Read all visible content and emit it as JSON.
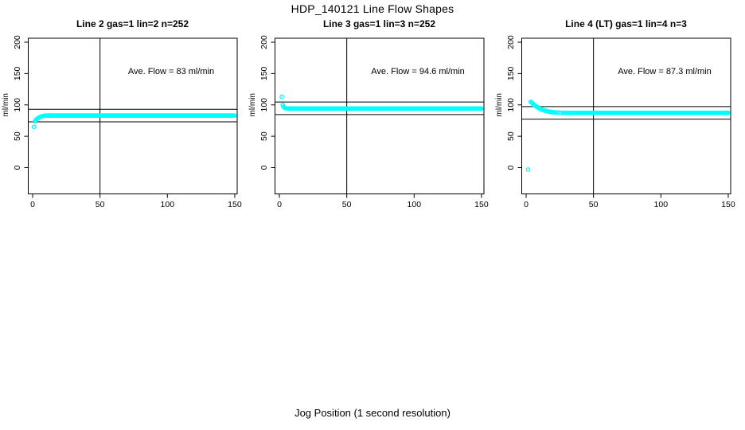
{
  "title": "HDP_140121  Line Flow Shapes",
  "xlabel": "Jog Position (1 second resolution)",
  "chart_data": {
    "type": "scatter",
    "title": "HDP_140121  Line Flow Shapes",
    "xlabel": "Jog Position (1 second resolution)",
    "ylabel": "ml/min",
    "x_ticks": [
      0,
      50,
      100,
      150
    ],
    "y_ticks": [
      0,
      50,
      100,
      150,
      200
    ],
    "xlim": [
      0,
      155
    ],
    "ylim": [
      -10,
      210
    ],
    "grid": false,
    "legend": "none",
    "point_color": "#00FFFF",
    "line_color": "#000000",
    "vline_x": 50,
    "panels": [
      {
        "title": "Line 2 gas=1 lin=2 n=252",
        "annotation": "Ave. Flow =  83  ml/min",
        "ave_flow_ml_min": 83,
        "n": 252,
        "ref_lines": [
          93,
          73
        ],
        "points": [
          [
            1,
            65
          ],
          [
            1.6,
            73.5
          ],
          [
            2.2,
            75.5
          ],
          [
            2.8,
            77
          ],
          [
            3.4,
            78
          ],
          [
            4,
            79
          ],
          [
            4.6,
            79.8
          ],
          [
            5.2,
            80.4
          ],
          [
            5.8,
            81
          ],
          [
            6.4,
            81.4
          ],
          [
            7,
            81.8
          ],
          [
            7.6,
            82.1
          ],
          [
            8.2,
            82.4
          ],
          [
            8.8,
            82.7
          ],
          [
            9.4,
            82.9
          ]
        ],
        "tail": {
          "x_start": 10,
          "x_end": 150,
          "step": 0.6,
          "y": 83
        }
      },
      {
        "title": "Line 3 gas=1 lin=3 n=252",
        "annotation": "Ave. Flow =  94.6  ml/min",
        "ave_flow_ml_min": 94.6,
        "n": 252,
        "ref_lines": [
          104.6,
          84.6
        ],
        "points": [
          [
            1.8,
            113
          ],
          [
            2.4,
            100
          ],
          [
            3,
            97.2
          ],
          [
            3.6,
            95.9
          ],
          [
            4.2,
            95.1
          ],
          [
            4.8,
            94.7
          ],
          [
            5.4,
            94.4
          ]
        ],
        "tail": {
          "x_start": 6,
          "x_end": 150,
          "step": 0.6,
          "y": 94.2
        }
      },
      {
        "title": "Line 4 (LT) gas=1 lin=4 n=3",
        "annotation": "Ave. Flow =  87.3  ml/min",
        "ave_flow_ml_min": 87.3,
        "n": 3,
        "ref_lines": [
          97.3,
          77.3
        ],
        "points": [
          [
            1.5,
            -3
          ],
          [
            3.5,
            105
          ],
          [
            4.1,
            103.6
          ],
          [
            4.7,
            102.4
          ],
          [
            5.3,
            101.2
          ],
          [
            5.9,
            100.1
          ],
          [
            6.5,
            99.1
          ],
          [
            7.1,
            98.1
          ],
          [
            7.7,
            97.2
          ],
          [
            8.3,
            96.4
          ],
          [
            8.9,
            95.6
          ],
          [
            9.5,
            94.9
          ],
          [
            10.1,
            94.2
          ],
          [
            10.7,
            93.6
          ],
          [
            11.3,
            93
          ],
          [
            11.9,
            92.5
          ],
          [
            12.5,
            92
          ],
          [
            13.1,
            91.5
          ],
          [
            13.7,
            91.1
          ],
          [
            14.3,
            90.7
          ],
          [
            14.9,
            90.4
          ],
          [
            15.5,
            90
          ],
          [
            16.1,
            89.7
          ],
          [
            16.7,
            89.5
          ],
          [
            17.3,
            89.2
          ],
          [
            17.9,
            89
          ],
          [
            18.5,
            88.7
          ],
          [
            19.1,
            88.5
          ],
          [
            19.7,
            88.4
          ],
          [
            20.3,
            88.2
          ],
          [
            20.9,
            88
          ],
          [
            21.5,
            87.9
          ],
          [
            22.7,
            87.8
          ],
          [
            23.9,
            87.7
          ],
          [
            25.1,
            87.6
          ],
          [
            26.3,
            87.5
          ],
          [
            27.5,
            87.5
          ]
        ],
        "tail": {
          "x_start": 28.1,
          "x_end": 150,
          "step": 0.6,
          "y": 87.4
        }
      }
    ]
  }
}
